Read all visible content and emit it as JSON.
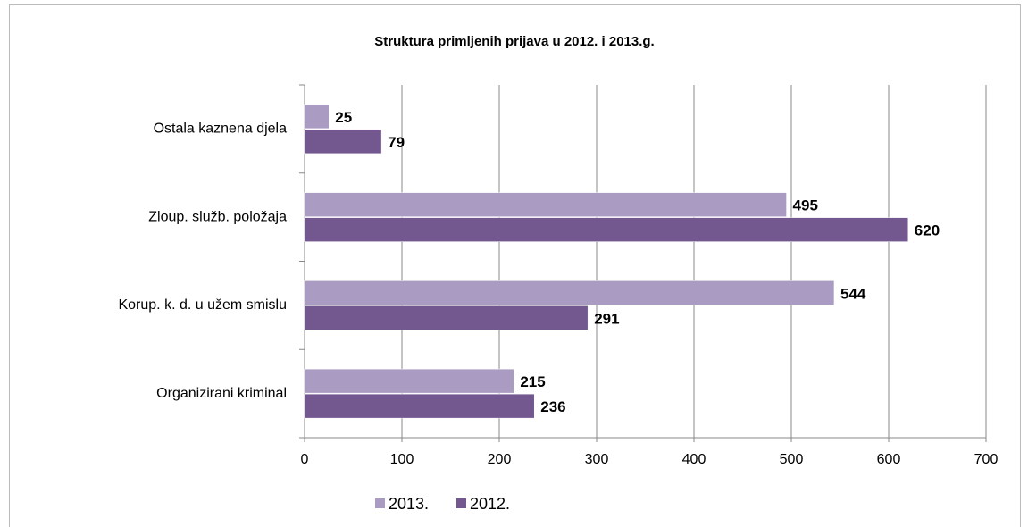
{
  "chart_data": {
    "type": "bar",
    "orientation": "horizontal",
    "title": "Struktura primljenih prijava  u 2012. i 2013.g.",
    "categories": [
      "Ostala kaznena djela",
      "Zloup. služb. položaja",
      "Korup. k. d. u užem smislu",
      "Organizirani kriminal"
    ],
    "series": [
      {
        "name": "2013.",
        "color": "#a99bc1",
        "values": [
          25,
          495,
          544,
          215
        ]
      },
      {
        "name": "2012.",
        "color": "#735890",
        "values": [
          79,
          620,
          291,
          236
        ]
      }
    ],
    "xlim": [
      0,
      700
    ],
    "xticks": [
      0,
      100,
      200,
      300,
      400,
      500,
      600,
      700
    ],
    "grid": true,
    "legend": "bottom"
  }
}
